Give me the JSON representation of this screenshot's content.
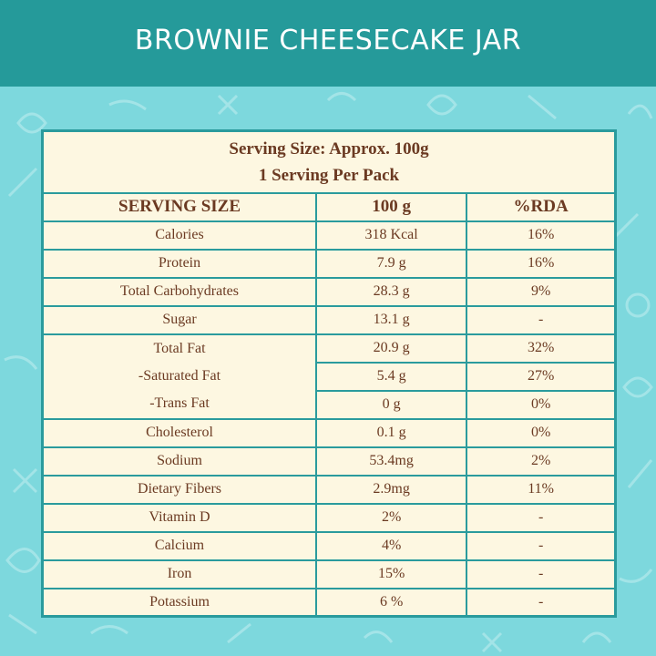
{
  "title": "BROWNIE CHEESECAKE JAR",
  "serving": {
    "line1": "Serving Size: Approx. 100g",
    "line2": "1 Serving Per Pack"
  },
  "columns": {
    "c1": "SERVING SIZE",
    "c2": "100 g",
    "c3": "%RDA"
  },
  "rows": [
    {
      "name": "Calories",
      "amount": "318 Kcal",
      "rda": "16%"
    },
    {
      "name": "Protein",
      "amount": "7.9 g",
      "rda": "16%"
    },
    {
      "name": "Total Carbohydrates",
      "amount": "28.3 g",
      "rda": "9%"
    },
    {
      "name": "Sugar",
      "amount": "13.1 g",
      "rda": "-"
    },
    {
      "name": "Total Fat",
      "amount": "20.9 g",
      "rda": "32%"
    },
    {
      "name": "-Saturated Fat",
      "amount": "5.4 g",
      "rda": "27%"
    },
    {
      "name": "-Trans Fat",
      "amount": "0 g",
      "rda": "0%"
    },
    {
      "name": "Cholesterol",
      "amount": "0.1 g",
      "rda": "0%"
    },
    {
      "name": "Sodium",
      "amount": "53.4mg",
      "rda": "2%"
    },
    {
      "name": "Dietary Fibers",
      "amount": "2.9mg",
      "rda": "11%"
    },
    {
      "name": "Vitamin D",
      "amount": "2%",
      "rda": "-"
    },
    {
      "name": "Calcium",
      "amount": "4%",
      "rda": "-"
    },
    {
      "name": "Iron",
      "amount": "15%",
      "rda": "-"
    },
    {
      "name": "Potassium",
      "amount": "6 %",
      "rda": "-"
    }
  ],
  "colors": {
    "header": "#259a9a",
    "background": "#7dd8dd",
    "table_bg": "#fdf7e1",
    "border": "#2a9b9d",
    "text": "#6b3a22"
  }
}
